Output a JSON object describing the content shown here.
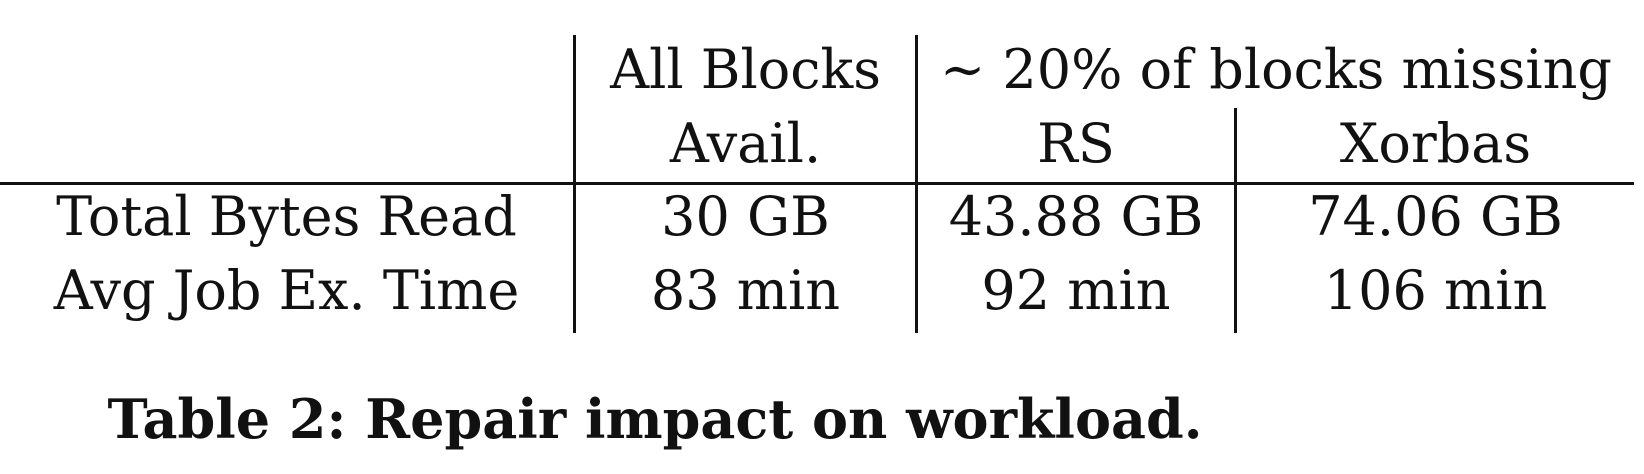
{
  "table": {
    "header_row1": {
      "all_blocks": "All Blocks",
      "missing_group": "∼ 20% of blocks missing"
    },
    "header_row2": {
      "avail": "Avail.",
      "rs": "RS",
      "xorbas": "Xorbas"
    },
    "rows": [
      {
        "label": "Total Bytes Read",
        "avail": "30 GB",
        "rs": "43.88 GB",
        "xorbas": "74.06 GB"
      },
      {
        "label": "Avg Job Ex. Time",
        "avail": "83 min",
        "rs": "92 min",
        "xorbas": "106 min"
      }
    ]
  },
  "caption": "Table 2: Repair impact on workload."
}
